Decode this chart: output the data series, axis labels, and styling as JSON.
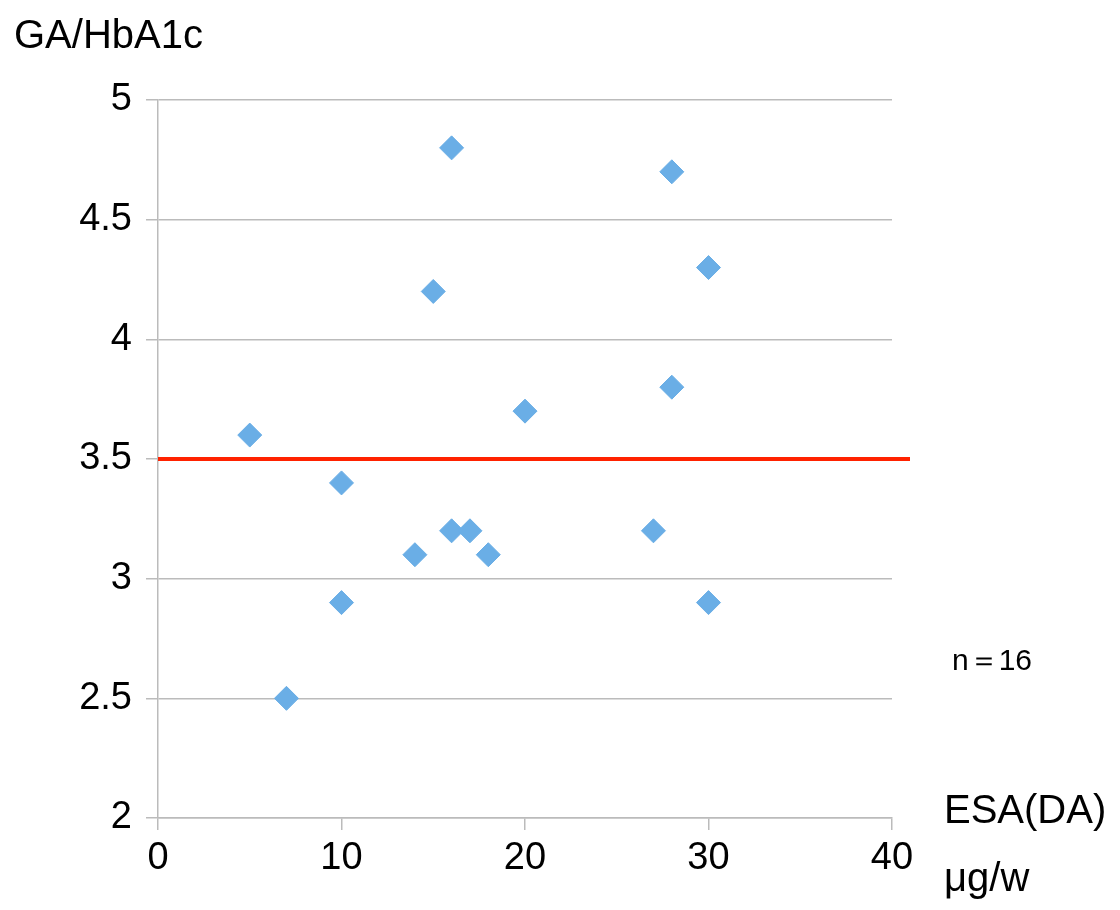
{
  "chart_data": {
    "type": "scatter",
    "ylabel": "GA/HbA1c",
    "xlabel": "ESA(DA) μg/w",
    "annotations": [
      "n＝16"
    ],
    "x": [
      5,
      7,
      10,
      10,
      14,
      15,
      16,
      16,
      17,
      18,
      20,
      27,
      28,
      28,
      30,
      30
    ],
    "series": [
      {
        "color": "#6aaee6",
        "values": [
          3.6,
          2.5,
          3.4,
          2.9,
          3.1,
          4.2,
          4.8,
          3.2,
          3.2,
          3.1,
          3.7,
          3.2,
          4.7,
          3.8,
          4.3,
          2.9
        ]
      }
    ],
    "xlim": [
      0,
      40
    ],
    "xticks": [
      0,
      10,
      20,
      30,
      40
    ],
    "ylim": [
      2,
      5
    ],
    "yticks": [
      2,
      2.5,
      3,
      3.5,
      4,
      4.5,
      5
    ],
    "ref_lines": [
      {
        "axis": "y",
        "value": 3.5,
        "color": "#ff2200"
      }
    ],
    "grid": "y",
    "marker": "diamond",
    "legend": false
  }
}
